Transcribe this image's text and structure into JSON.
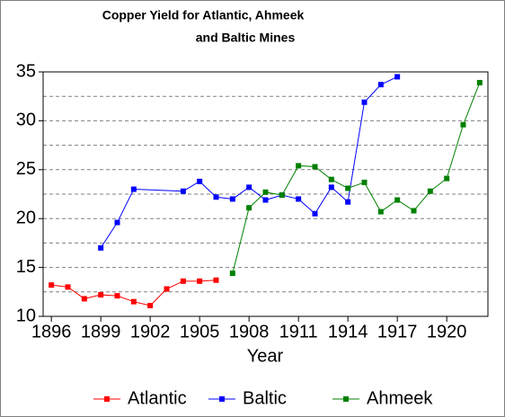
{
  "chart_data": {
    "type": "line",
    "title": [
      "Copper Yield for Atlantic, Ahmeek",
      "and Baltic Mines"
    ],
    "x_label": "Year",
    "xlim": [
      1895.5,
      1922.5
    ],
    "xticks": [
      1896,
      1899,
      1902,
      1905,
      1908,
      1911,
      1914,
      1917,
      1920
    ],
    "ylim": [
      10,
      35
    ],
    "yticks": [
      10,
      15,
      20,
      25,
      30,
      35
    ],
    "yminorticks": [
      12.5,
      17.5,
      22.5,
      27.5,
      32.5
    ],
    "grid": true,
    "legend": "bottom",
    "series": [
      {
        "name": "Atlantic",
        "color": "#ff0000",
        "x": [
          1896,
          1897,
          1898,
          1899,
          1900,
          1901,
          1902,
          1903,
          1904,
          1905,
          1906
        ],
        "values": [
          13.2,
          13.0,
          11.8,
          12.2,
          12.1,
          11.5,
          11.1,
          12.8,
          13.6,
          13.6,
          13.7
        ]
      },
      {
        "name": "Baltic",
        "color": "#0000ff",
        "x": [
          1899,
          1900,
          1901,
          1904,
          1905,
          1906,
          1907,
          1908,
          1909,
          1910,
          1911,
          1912,
          1913,
          1914,
          1915,
          1916,
          1917
        ],
        "values": [
          17.0,
          19.6,
          23.0,
          22.8,
          23.8,
          22.2,
          22.0,
          23.2,
          21.9,
          22.4,
          22.0,
          20.5,
          23.2,
          21.7,
          31.9,
          33.7,
          34.5
        ]
      },
      {
        "name": "Ahmeek",
        "color": "#008000",
        "x": [
          1907,
          1908,
          1909,
          1910,
          1911,
          1912,
          1913,
          1914,
          1915,
          1916,
          1917,
          1918,
          1919,
          1920,
          1921,
          1922
        ],
        "values": [
          14.4,
          21.1,
          22.7,
          22.4,
          25.4,
          25.3,
          24.0,
          23.1,
          23.7,
          20.7,
          21.9,
          20.8,
          22.8,
          24.1,
          29.6,
          33.9
        ]
      }
    ]
  }
}
